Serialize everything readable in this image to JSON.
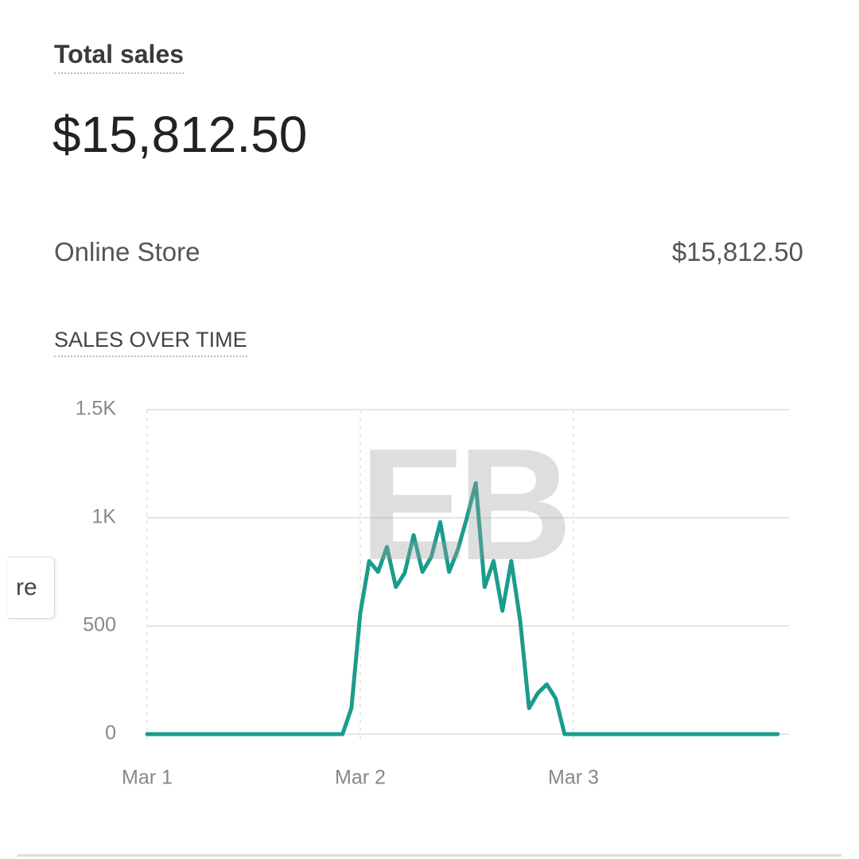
{
  "header": {
    "title": "Total sales",
    "total": "$15,812.50"
  },
  "breakdown": {
    "label": "Online Store",
    "value": "$15,812.50"
  },
  "section_title": "SALES OVER TIME",
  "side_tab": "re",
  "watermark": "EB",
  "chart_data": {
    "type": "line",
    "categories": [
      "Mar 1",
      null,
      null,
      null,
      null,
      null,
      null,
      null,
      null,
      null,
      null,
      null,
      null,
      null,
      null,
      null,
      null,
      null,
      null,
      null,
      null,
      null,
      null,
      null,
      "Mar 2",
      null,
      null,
      null,
      null,
      null,
      null,
      null,
      null,
      null,
      null,
      null,
      null,
      null,
      null,
      null,
      null,
      null,
      null,
      null,
      null,
      null,
      null,
      null,
      "Mar 3",
      null,
      null,
      null,
      null,
      null,
      null,
      null,
      null,
      null,
      null,
      null,
      null,
      null,
      null,
      null,
      null,
      null,
      null,
      null,
      null,
      null,
      null,
      null
    ],
    "series": [
      {
        "color": "#1a9c8c",
        "values": [
          0,
          0,
          0,
          0,
          0,
          0,
          0,
          0,
          0,
          0,
          0,
          0,
          0,
          0,
          0,
          0,
          0,
          0,
          0,
          0,
          0,
          0,
          0,
          120,
          560,
          800,
          750,
          865,
          680,
          745,
          920,
          750,
          820,
          980,
          750,
          855,
          1000,
          1160,
          680,
          800,
          570,
          800,
          525,
          120,
          190,
          230,
          165,
          0,
          0,
          0,
          0,
          0,
          0,
          0,
          0,
          0,
          0,
          0,
          0,
          0,
          0,
          0,
          0,
          0,
          0,
          0,
          0,
          0,
          0,
          0,
          0,
          0
        ]
      }
    ],
    "ylim": [
      0,
      1500
    ],
    "yticks": [
      0,
      500,
      {
        "value": 1000,
        "label": "1K"
      },
      {
        "value": 1500,
        "label": "1.5K"
      }
    ],
    "grid": true
  }
}
